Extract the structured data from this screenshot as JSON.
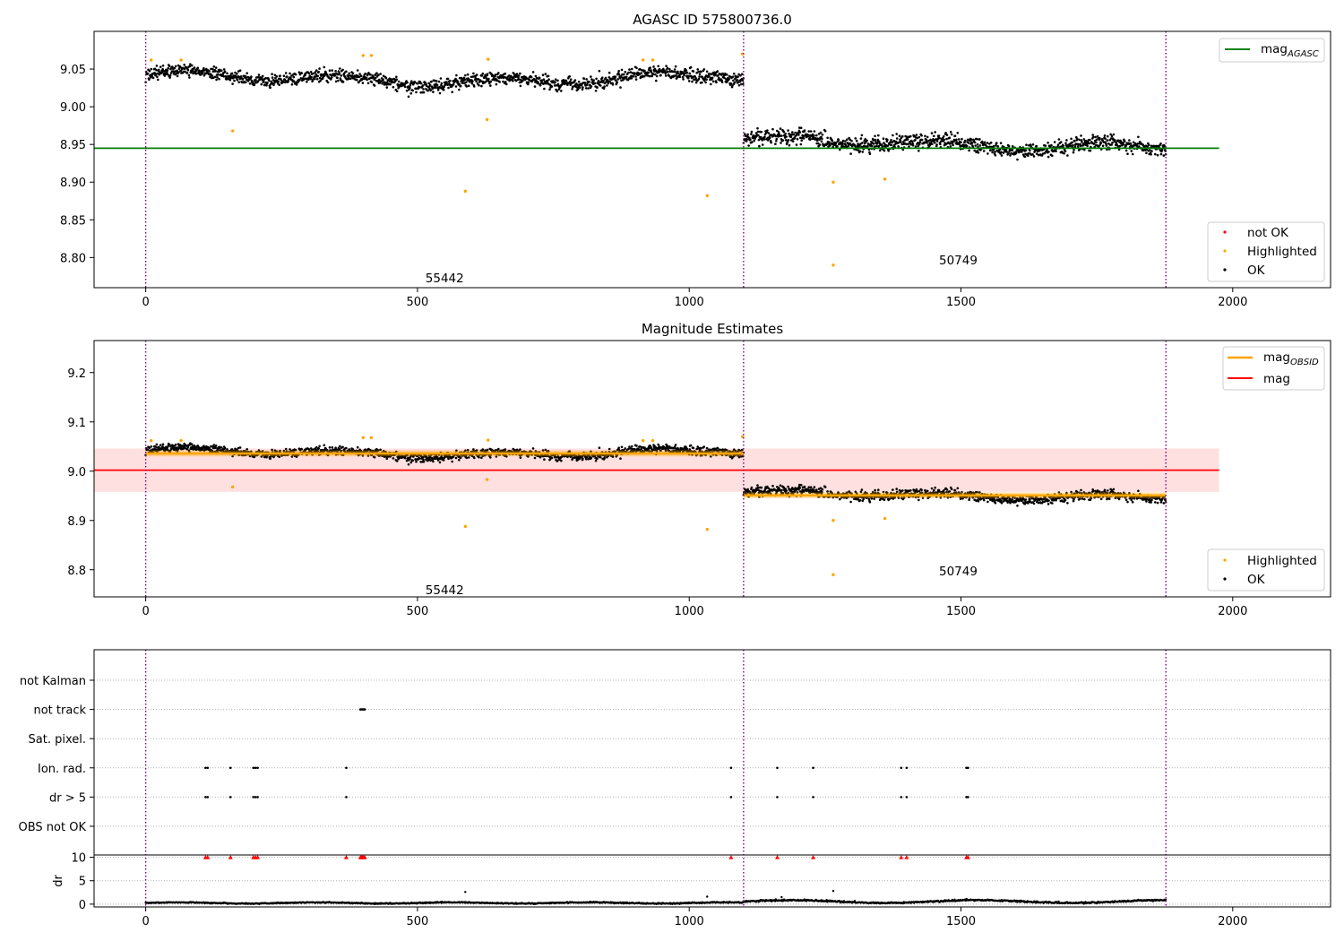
{
  "chart_data": [
    {
      "type": "scatter",
      "title": "AGASC ID 575800736.0",
      "xlim": [
        -95,
        2180
      ],
      "ylim": [
        8.76,
        9.1
      ],
      "xticks": [
        0,
        500,
        1000,
        1500,
        2000
      ],
      "yticks": [
        8.8,
        8.85,
        8.9,
        8.95,
        9.0,
        9.05
      ],
      "vlines": [
        0,
        1100,
        1877
      ],
      "hline": {
        "label": "mag_AGASC",
        "name": "mag",
        "sub": "AGASC",
        "value": 8.945,
        "x": [
          -95,
          1975
        ],
        "color": "#008000"
      },
      "segments": [
        {
          "obsid_label": "55442",
          "x_range": [
            0,
            1100
          ],
          "level": 9.037,
          "spread": 0.011,
          "label_pos": [
            550,
            8.773
          ]
        },
        {
          "obsid_label": "50749",
          "x_range": [
            1100,
            1877
          ],
          "level": 8.951,
          "spread": 0.012,
          "label_pos": [
            1495,
            8.797
          ]
        }
      ],
      "highlighted": [
        [
          10,
          9.062
        ],
        [
          65,
          9.062
        ],
        [
          160,
          8.968
        ],
        [
          400,
          9.068
        ],
        [
          415,
          9.068
        ],
        [
          588,
          8.888
        ],
        [
          628,
          8.983
        ],
        [
          630,
          9.063
        ],
        [
          915,
          9.062
        ],
        [
          933,
          9.062
        ],
        [
          1033,
          8.882
        ],
        [
          1098,
          9.07
        ],
        [
          1265,
          8.9
        ],
        [
          1265,
          8.79
        ],
        [
          1360,
          8.904
        ]
      ],
      "legends": [
        {
          "position": "upper right",
          "entries": [
            {
              "kind": "line",
              "name": "mag",
              "sub": "AGASC",
              "color": "#008000"
            }
          ]
        },
        {
          "position": "lower right",
          "entries": [
            {
              "kind": "dot",
              "name": "not OK",
              "color": "#ff0000"
            },
            {
              "kind": "dot",
              "name": "Highlighted",
              "color": "#ffa500"
            },
            {
              "kind": "dot",
              "name": "OK",
              "color": "#000000"
            }
          ]
        }
      ]
    },
    {
      "type": "scatter",
      "title": "Magnitude Estimates",
      "xlim": [
        -95,
        2180
      ],
      "ylim": [
        8.745,
        9.265
      ],
      "xticks": [
        0,
        500,
        1000,
        1500,
        2000
      ],
      "yticks": [
        8.8,
        8.9,
        9.0,
        9.1,
        9.2
      ],
      "vlines": [
        0,
        1100,
        1877
      ],
      "hline": {
        "name": "mag",
        "value": 9.002,
        "x": [
          -95,
          1975
        ],
        "band": [
          8.958,
          9.046
        ],
        "color": "#ff0000"
      },
      "obsid_lines": [
        {
          "name": "mag",
          "sub": "OBSID",
          "x": [
            0,
            1100
          ],
          "value": 9.036,
          "band": [
            9.03,
            9.042
          ]
        },
        {
          "name": "mag",
          "sub": "OBSID",
          "x": [
            1100,
            1877
          ],
          "value": 8.951,
          "band": [
            8.945,
            8.957
          ]
        }
      ],
      "segments": [
        {
          "obsid_label": "55442",
          "x_range": [
            0,
            1100
          ],
          "level": 9.037,
          "spread": 0.011,
          "label_pos": [
            550,
            8.76
          ]
        },
        {
          "obsid_label": "50749",
          "x_range": [
            1100,
            1877
          ],
          "level": 8.951,
          "spread": 0.012,
          "label_pos": [
            1495,
            8.798
          ]
        }
      ],
      "highlighted": [
        [
          10,
          9.062
        ],
        [
          65,
          9.062
        ],
        [
          160,
          8.968
        ],
        [
          400,
          9.068
        ],
        [
          415,
          9.068
        ],
        [
          588,
          8.888
        ],
        [
          628,
          8.983
        ],
        [
          630,
          9.063
        ],
        [
          915,
          9.062
        ],
        [
          933,
          9.062
        ],
        [
          1033,
          8.882
        ],
        [
          1098,
          9.07
        ],
        [
          1265,
          8.9
        ],
        [
          1265,
          8.79
        ],
        [
          1360,
          8.904
        ]
      ],
      "legends": [
        {
          "position": "upper right",
          "entries": [
            {
              "kind": "line",
              "name": "mag",
              "sub": "OBSID",
              "color": "#ffa500"
            },
            {
              "kind": "line",
              "name": "mag",
              "sub": "",
              "color": "#ff0000"
            }
          ]
        },
        {
          "position": "lower right",
          "entries": [
            {
              "kind": "dot",
              "name": "Highlighted",
              "color": "#ffa500"
            },
            {
              "kind": "dot",
              "name": "OK",
              "color": "#000000"
            }
          ]
        }
      ]
    },
    {
      "type": "scatter",
      "xlim": [
        -95,
        2180
      ],
      "xticks": [
        0,
        500,
        1000,
        1500,
        2000
      ],
      "vlines": [
        0,
        1100,
        1877
      ],
      "flag_rows": [
        "not Kalman",
        "not track",
        "Sat. pixel.",
        "Ion. rad.",
        "dr > 5",
        "OBS not OK"
      ],
      "flag_points": {
        "not track": [
          395,
          397,
          399,
          401,
          403
        ],
        "Ion. rad.": [
          110,
          114,
          156,
          198,
          202,
          206,
          369,
          1077,
          1162,
          1228,
          1390,
          1400,
          1510,
          1513
        ],
        "dr > 5": [
          110,
          114,
          156,
          198,
          202,
          206,
          369,
          1077,
          1162,
          1228,
          1390,
          1400,
          1510,
          1513
        ]
      },
      "dr_panel": {
        "ylabel": "dr",
        "ylim": [
          -0.6,
          10.5
        ],
        "yticks": [
          0,
          5,
          10
        ],
        "clipped_at": 10,
        "clipped_x": [
          110,
          114,
          156,
          198,
          202,
          206,
          369,
          395,
          397,
          399,
          401,
          403,
          1077,
          1162,
          1228,
          1390,
          1400,
          1510,
          1513
        ],
        "outliers": [
          [
            588,
            2.6
          ],
          [
            1033,
            1.6
          ],
          [
            1265,
            2.8
          ],
          [
            1170,
            1.5
          ]
        ]
      }
    }
  ]
}
